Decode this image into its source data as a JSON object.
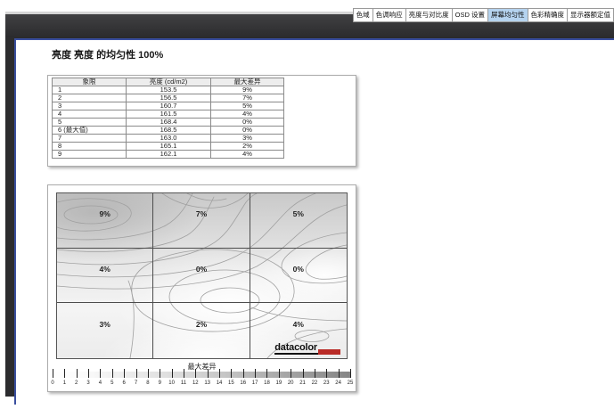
{
  "tab_bar": {
    "tabs": [
      {
        "label": "色域",
        "selected": false
      },
      {
        "label": "色调响应",
        "selected": false
      },
      {
        "label": "亮度与对比度",
        "selected": false
      },
      {
        "label": "OSD 设置",
        "selected": false
      },
      {
        "label": "屏幕均匀性",
        "selected": true
      },
      {
        "label": "色彩精确度",
        "selected": false
      },
      {
        "label": "显示器额定值",
        "selected": false
      }
    ],
    "selected_tab_bg": "#b5d3ef"
  },
  "report": {
    "title": "亮度 亮度 的均匀性 100%"
  },
  "uniformity_table": {
    "headers": [
      "象限",
      "亮度 (cd/m2)",
      "最大差异"
    ],
    "rows": [
      [
        "1",
        "153.5",
        "9%"
      ],
      [
        "2",
        "156.5",
        "7%"
      ],
      [
        "3",
        "160.7",
        "5%"
      ],
      [
        "4",
        "161.5",
        "4%"
      ],
      [
        "5",
        "168.4",
        "0%"
      ],
      [
        "6 (最大值)",
        "168.5",
        "0%"
      ],
      [
        "7",
        "163.0",
        "3%"
      ],
      [
        "8",
        "165.1",
        "2%"
      ],
      [
        "9",
        "162.1",
        "4%"
      ]
    ]
  },
  "chart_data": {
    "type": "heatmap",
    "title": "亮度 亮度 的均匀性 100%",
    "grid_rows": 3,
    "grid_cols": 3,
    "cell_labels": [
      [
        "9%",
        "7%",
        "5%"
      ],
      [
        "4%",
        "0%",
        "0%"
      ],
      [
        "3%",
        "2%",
        "4%"
      ]
    ],
    "cell_values_percent": [
      [
        9,
        7,
        5
      ],
      [
        4,
        0,
        0
      ],
      [
        3,
        2,
        4
      ]
    ],
    "quadrant_luminance_cd_m2": [
      153.5,
      156.5,
      160.7,
      161.5,
      168.4,
      168.5,
      163.0,
      165.1,
      162.1
    ],
    "scale": {
      "label": "最大差异",
      "min": 0,
      "max": 25,
      "tick_labels": [
        "0",
        "1",
        "2",
        "3",
        "4",
        "5",
        "6",
        "7",
        "8",
        "9",
        "10",
        "11",
        "12",
        "13",
        "14",
        "15",
        "16",
        "17",
        "18",
        "19",
        "20",
        "21",
        "22",
        "23",
        "24",
        "25"
      ]
    },
    "legend_position": "bottom",
    "shading_note": "darker gray = larger max difference, white = 0%"
  },
  "logo": {
    "text": "datacolor",
    "bar_color": "#b92b27"
  },
  "colors": {
    "page_border_blue": "#3a4f9f",
    "toolbar_dark": "#2e2e30",
    "tab_selected_bg": "#b5d3ef",
    "logo_red": "#b92b27"
  }
}
